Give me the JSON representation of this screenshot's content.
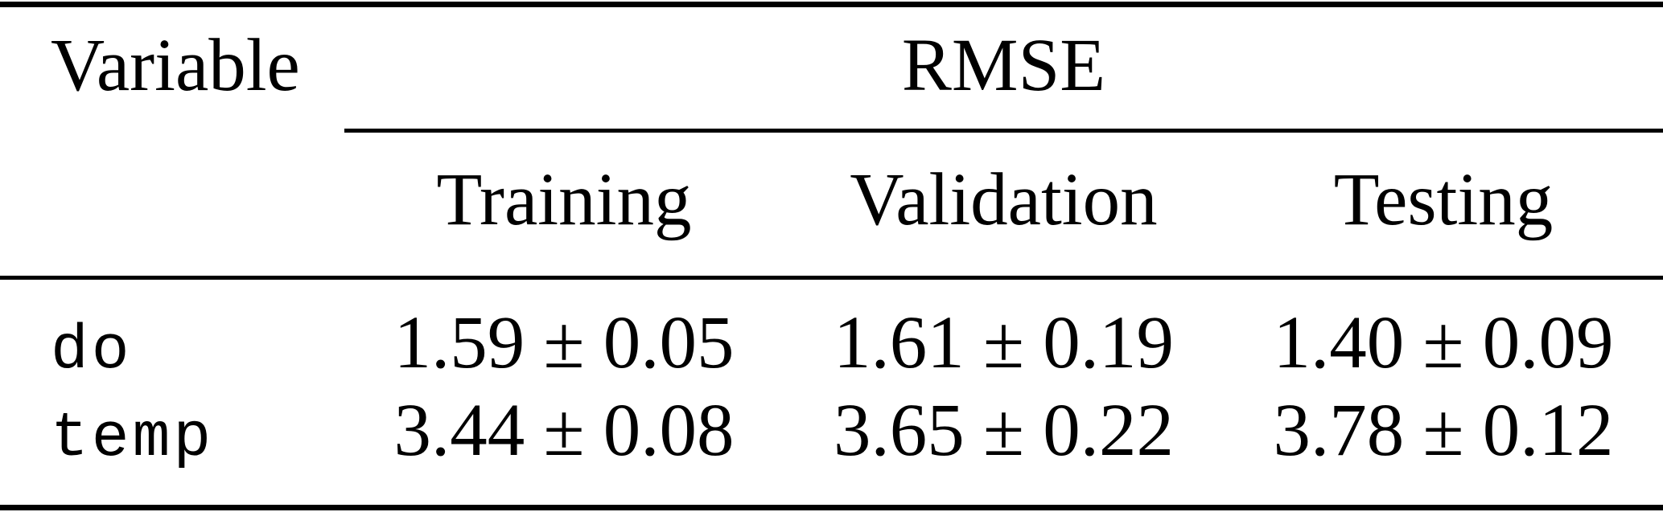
{
  "colors": {
    "background": "#ffffff",
    "text": "#000000",
    "rule": "#000000"
  },
  "table": {
    "variable_header": "Variable",
    "group_header": "RMSE",
    "subheaders": {
      "training": "Training",
      "validation": "Validation",
      "testing": "Testing"
    },
    "rows": [
      {
        "variable": "do",
        "training": "1.59 ± 0.05",
        "validation": "1.61 ± 0.19",
        "testing": "1.40 ± 0.09"
      },
      {
        "variable": "temp",
        "training": "3.44 ± 0.08",
        "validation": "3.65 ± 0.22",
        "testing": "3.78 ± 0.12"
      }
    ]
  },
  "chart_data": {
    "type": "table",
    "title": "",
    "columns": [
      "Variable",
      "Training",
      "Validation",
      "Testing"
    ],
    "group_header": {
      "label": "RMSE",
      "span_columns": [
        "Training",
        "Validation",
        "Testing"
      ]
    },
    "rows": [
      {
        "variable": "do",
        "rmse": {
          "training": {
            "mean": 1.59,
            "std": 0.05
          },
          "validation": {
            "mean": 1.61,
            "std": 0.19
          },
          "testing": {
            "mean": 1.4,
            "std": 0.09
          }
        }
      },
      {
        "variable": "temp",
        "rmse": {
          "training": {
            "mean": 3.44,
            "std": 0.08
          },
          "validation": {
            "mean": 3.65,
            "std": 0.22
          },
          "testing": {
            "mean": 3.78,
            "std": 0.12
          }
        }
      }
    ]
  }
}
